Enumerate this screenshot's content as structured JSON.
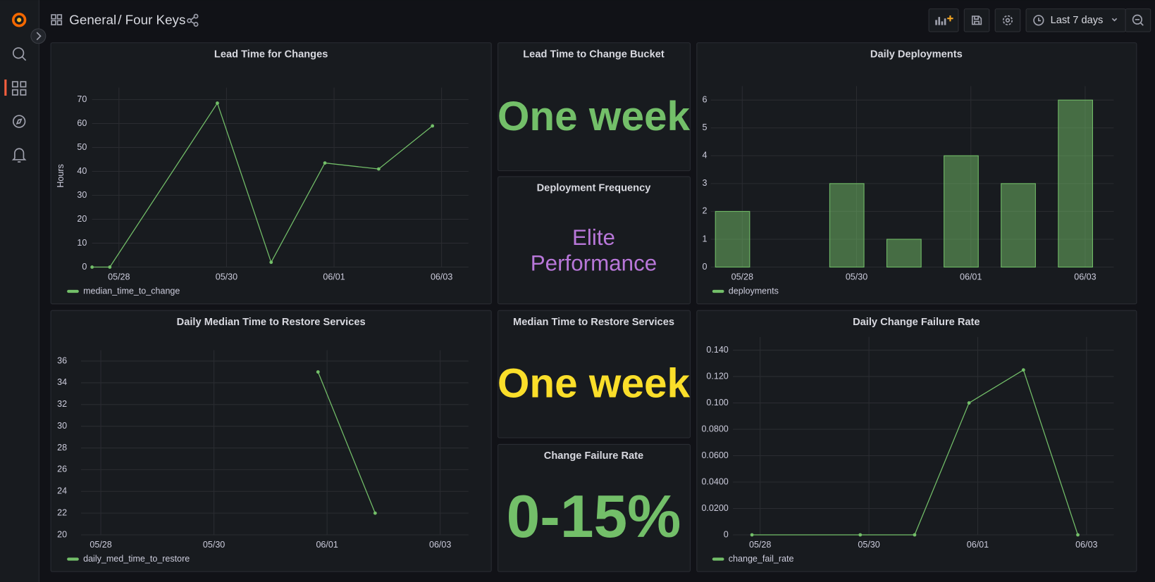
{
  "header": {
    "folder": "General",
    "dashboard": "/ Four Keys",
    "time_range": "Last 7 days"
  },
  "stats": [
    {
      "title": "Lead Time to Change Bucket",
      "lines": [
        "One week"
      ],
      "color": "#73bf69"
    },
    {
      "title": "Deployment Frequency",
      "lines": [
        "Elite",
        "Performance"
      ],
      "color": "#b877d9"
    },
    {
      "title": "Median Time to Restore Services",
      "lines": [
        "One week"
      ],
      "color": "#fade2a"
    },
    {
      "title": "Change Failure Rate",
      "lines": [
        "0-15%"
      ],
      "color": "#73bf69"
    }
  ],
  "chart_data": [
    {
      "type": "line",
      "title": "Lead Time for Changes",
      "y_label": "Hours",
      "xlim": [
        -0.5,
        6.5
      ],
      "xticks": [
        {
          "value": 0,
          "label": "05/28"
        },
        {
          "value": 2,
          "label": "05/30"
        },
        {
          "value": 4,
          "label": "06/01"
        },
        {
          "value": 6,
          "label": "06/03"
        }
      ],
      "ylim": [
        0,
        75
      ],
      "yticks": [
        0,
        10,
        20,
        30,
        40,
        50,
        60,
        70
      ],
      "grid": true,
      "legend": "bottom-left",
      "series": [
        {
          "name": "median_time_to_change",
          "color": "#73bf69",
          "x": [
            -0.5,
            -0.17,
            1.83,
            2.83,
            3.83,
            4.83,
            5.83
          ],
          "values": [
            0,
            0,
            68.5,
            2,
            43.5,
            41,
            59
          ]
        }
      ]
    },
    {
      "type": "bar",
      "title": "Daily Deployments",
      "xlim": [
        -0.55,
        6.5
      ],
      "xticks": [
        {
          "value": 0,
          "label": "05/28"
        },
        {
          "value": 2,
          "label": "05/30"
        },
        {
          "value": 4,
          "label": "06/01"
        },
        {
          "value": 6,
          "label": "06/03"
        }
      ],
      "ylim": [
        0,
        6.5
      ],
      "yticks": [
        0,
        1,
        2,
        3,
        4,
        5,
        6
      ],
      "grid": true,
      "legend": "bottom-left",
      "series": [
        {
          "name": "deployments",
          "color": "#73bf69",
          "x": [
            -0.17,
            1.83,
            2.83,
            3.83,
            4.83,
            5.83
          ],
          "values": [
            2,
            3,
            1,
            4,
            3,
            6
          ]
        }
      ]
    },
    {
      "type": "line",
      "title": "Daily Median Time to Restore Services",
      "xlim": [
        -0.35,
        6.5
      ],
      "xticks": [
        {
          "value": 0,
          "label": "05/28"
        },
        {
          "value": 2,
          "label": "05/30"
        },
        {
          "value": 4,
          "label": "06/01"
        },
        {
          "value": 6,
          "label": "06/03"
        }
      ],
      "ylim": [
        20,
        37
      ],
      "yticks": [
        20,
        22,
        24,
        26,
        28,
        30,
        32,
        34,
        36
      ],
      "grid": true,
      "legend": "bottom-left",
      "series": [
        {
          "name": "daily_med_time_to_restore",
          "color": "#73bf69",
          "x": [
            3.84,
            4.85
          ],
          "values": [
            35,
            22
          ]
        }
      ]
    },
    {
      "type": "line",
      "title": "Daily Change Failure Rate",
      "xlim": [
        -0.5,
        6.5
      ],
      "xticks": [
        {
          "value": 0,
          "label": "05/28"
        },
        {
          "value": 2,
          "label": "05/30"
        },
        {
          "value": 4,
          "label": "06/01"
        },
        {
          "value": 6,
          "label": "06/03"
        }
      ],
      "ylim": [
        0,
        0.15
      ],
      "yticks": [
        0,
        {
          "value": 0.02,
          "label": "0.0200"
        },
        {
          "value": 0.04,
          "label": "0.0400"
        },
        {
          "value": 0.06,
          "label": "0.0600"
        },
        {
          "value": 0.08,
          "label": "0.0800"
        },
        {
          "value": 0.1,
          "label": "0.100"
        },
        {
          "value": 0.12,
          "label": "0.120"
        },
        {
          "value": 0.14,
          "label": "0.140"
        }
      ],
      "grid": true,
      "legend": "bottom-left",
      "series": [
        {
          "name": "change_fail_rate",
          "color": "#73bf69",
          "x": [
            -0.15,
            1.84,
            2.84,
            3.84,
            4.84,
            5.84
          ],
          "values": [
            0,
            0,
            0,
            0.1,
            0.125,
            0
          ]
        }
      ]
    }
  ]
}
